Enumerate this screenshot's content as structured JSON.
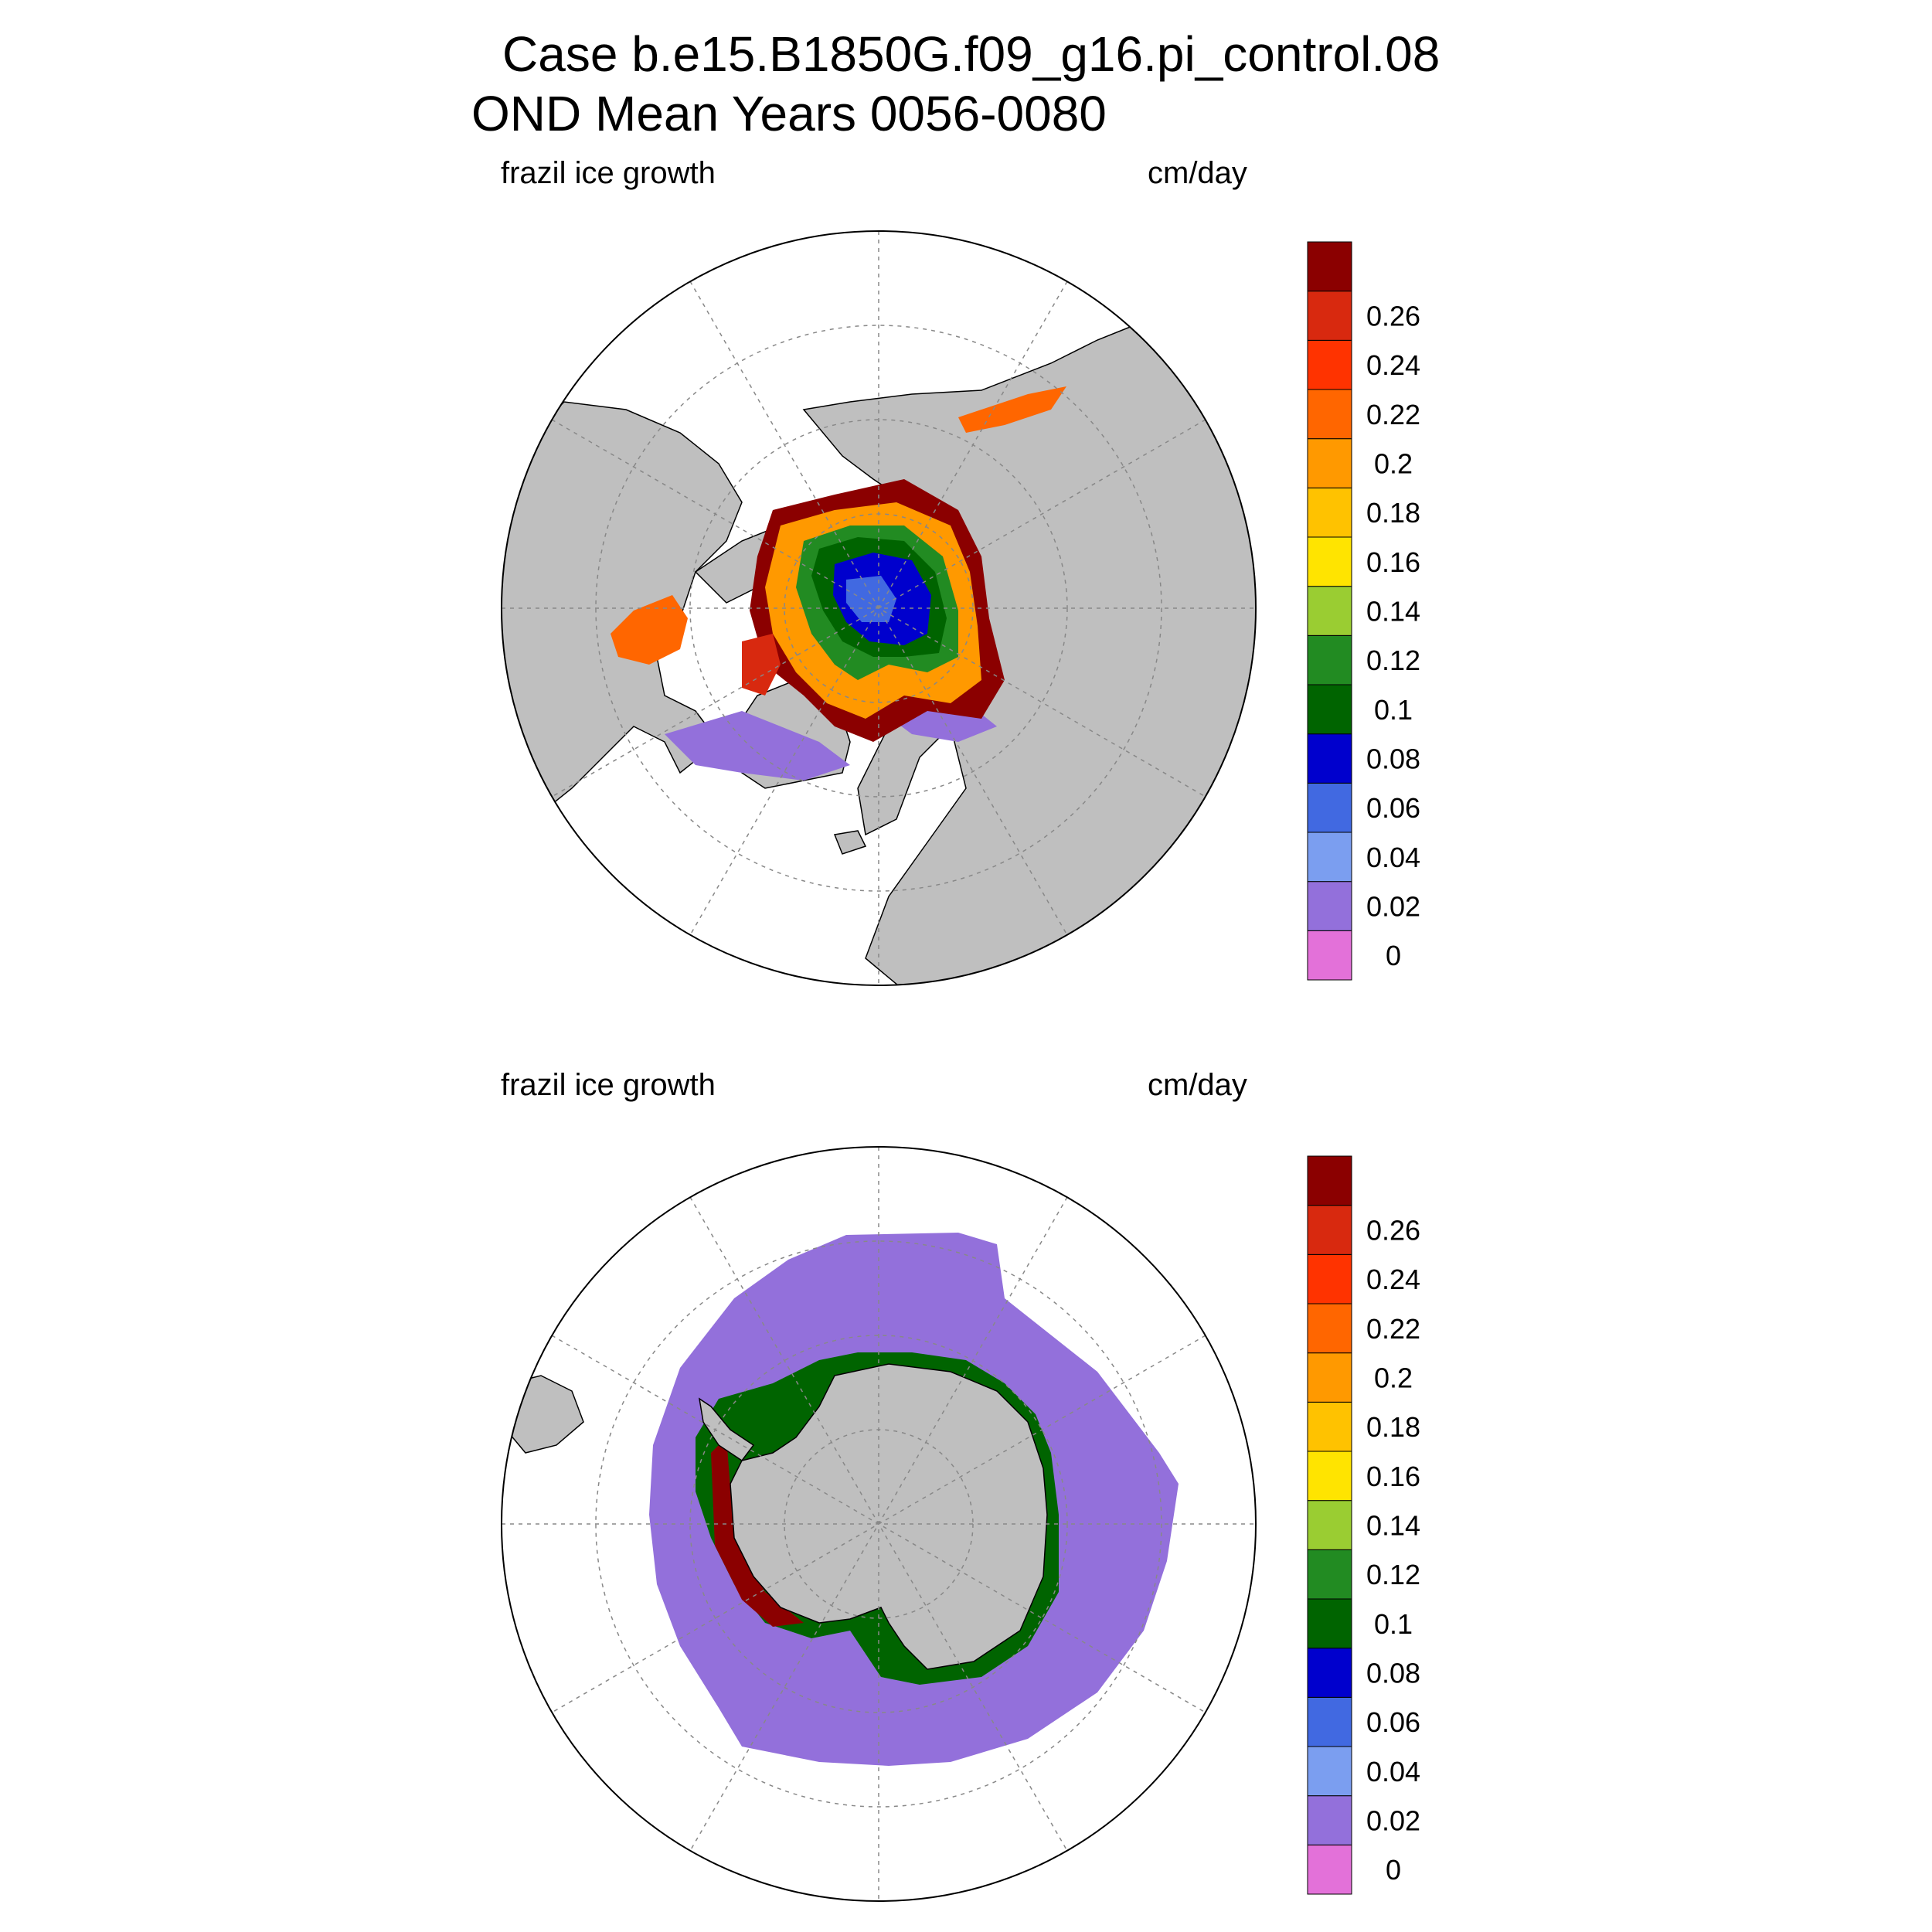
{
  "title": {
    "line1": "Case b.e15.B1850G.f09_g16.pi_control.08",
    "line2": "OND Mean    Years 0056-0080"
  },
  "panels": [
    {
      "id": "north",
      "left_label": "frazil ice growth",
      "right_label": "cm/day"
    },
    {
      "id": "south",
      "left_label": "frazil ice growth",
      "right_label": "cm/day"
    }
  ],
  "colorbar": {
    "levels": [
      "0",
      "0.02",
      "0.04",
      "0.06",
      "0.08",
      "0.1",
      "0.12",
      "0.14",
      "0.16",
      "0.18",
      "0.2",
      "0.22",
      "0.24",
      "0.26"
    ],
    "colors": [
      "#e371d9",
      "#9370db",
      "#7b9ef0",
      "#4169e1",
      "#0000cd",
      "#006400",
      "#228b22",
      "#9acd32",
      "#ffe400",
      "#ffc200",
      "#ff9900",
      "#ff6600",
      "#ff3300",
      "#d8290f",
      "#8b0000"
    ]
  },
  "map_colors": {
    "land": "#bfbfbf",
    "ocean": "#ffffff",
    "grid": "#888888"
  }
}
